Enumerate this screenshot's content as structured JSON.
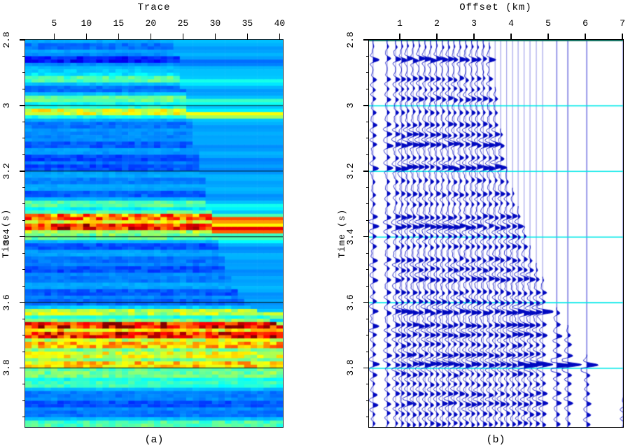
{
  "figure": {
    "panel_a": {
      "title": "Trace",
      "ylabel": "Time (s)",
      "caption": "(a)",
      "x_tick_labels": [
        "5",
        "10",
        "15",
        "20",
        "25",
        "30",
        "35",
        "40"
      ],
      "y_tick_labels": [
        "2.8",
        "3",
        "3.2",
        "3.4",
        "3.6",
        "3.8"
      ]
    },
    "panel_b": {
      "title": "Offset (km)",
      "ylabel": "Time (s)",
      "caption": "(b)",
      "x_tick_labels": [
        "1",
        "2",
        "3",
        "4",
        "5",
        "6",
        "7"
      ],
      "y_tick_labels": [
        "2.8",
        "3",
        "3.2",
        "3.4",
        "3.6",
        "3.8"
      ]
    },
    "colors": {
      "background": "#ffffff",
      "mute_fill_cyan": "#00c2f8",
      "wiggle_blue": "#0008c0",
      "baseline_blue": "#9a9ae8",
      "grid_cyan": "#00e8e8",
      "grid_black": "#102020",
      "top_border_teal": "#0e6e5e",
      "axis_black": "#000000"
    }
  },
  "chart_data": {
    "type": "heatmap",
    "subtype": "seismic-cmp-gather-two-views",
    "panels": [
      {
        "id": "a",
        "type": "heatmap",
        "xlabel": "Trace",
        "ylabel": "Time (s)",
        "x_ticks": [
          5,
          10,
          15,
          20,
          25,
          30,
          35,
          40
        ],
        "x_range": [
          1,
          40
        ],
        "time_ticks": [
          2.8,
          3.0,
          3.2,
          3.4,
          3.6,
          3.8
        ],
        "time_range": [
          2.8,
          3.98
        ],
        "colormap": "jet",
        "grid_times": [
          3.0,
          3.2,
          3.4,
          3.6,
          3.8
        ],
        "mute_boundary_trace_vs_time": [
          [
            2.8,
            23.5
          ],
          [
            3.0,
            25.5
          ],
          [
            3.2,
            27.8
          ],
          [
            3.4,
            30.0
          ],
          [
            3.55,
            32.5
          ],
          [
            3.62,
            36.0
          ],
          [
            3.68,
            41.0
          ]
        ]
      },
      {
        "id": "b",
        "type": "line",
        "subtype": "wiggle-traces",
        "xlabel": "Offset (km)",
        "ylabel": "Time (s)",
        "x_ticks": [
          1,
          2,
          3,
          4,
          5,
          6,
          7
        ],
        "x_range": [
          0.17,
          7.02
        ],
        "time_ticks": [
          2.8,
          3.0,
          3.2,
          3.4,
          3.6,
          3.8
        ],
        "time_range": [
          2.8,
          3.98
        ],
        "grid_times": [
          3.0,
          3.2,
          3.4,
          3.6,
          3.8
        ],
        "trace_offsets_km": [
          0.28,
          0.66,
          0.89,
          1.05,
          1.2,
          1.36,
          1.52,
          1.68,
          1.83,
          1.99,
          2.15,
          2.31,
          2.46,
          2.62,
          2.78,
          2.94,
          3.09,
          3.25,
          3.41,
          3.57,
          3.72,
          3.88,
          4.04,
          4.19,
          4.35,
          4.51,
          4.68,
          4.85,
          5.23,
          5.53,
          6.04,
          7.02
        ],
        "mute_time_vs_offset": [
          [
            3.4,
            2.8
          ],
          [
            3.85,
            3.18
          ],
          [
            4.6,
            3.46
          ],
          [
            5.25,
            3.62
          ],
          [
            6.1,
            3.77
          ],
          [
            7.1,
            3.9
          ]
        ]
      }
    ],
    "events": [
      {
        "t": 2.82,
        "a": -0.35,
        "w": 0.5
      },
      {
        "t": 2.86,
        "a": -0.75,
        "w": 0.85
      },
      {
        "t": 2.92,
        "a": 0.25,
        "w": 0.6
      },
      {
        "t": 2.95,
        "a": -0.35,
        "w": 0.4
      },
      {
        "t": 2.98,
        "a": 0.3,
        "w": 0.65
      },
      {
        "t": 3.02,
        "a": 0.5,
        "w": 0.5
      },
      {
        "t": 3.06,
        "a": -0.35,
        "w": 0.55
      },
      {
        "t": 3.09,
        "a": -0.25,
        "w": 0.7
      },
      {
        "t": 3.12,
        "a": -0.45,
        "w": 0.9
      },
      {
        "t": 3.16,
        "a": -0.55,
        "w": 0.5
      },
      {
        "t": 3.19,
        "a": -0.5,
        "w": 1.0
      },
      {
        "t": 3.23,
        "a": -0.3,
        "w": 0.45
      },
      {
        "t": 3.27,
        "a": -0.45,
        "w": 0.6
      },
      {
        "t": 3.3,
        "a": 0.25,
        "w": 0.4
      },
      {
        "t": 3.34,
        "a": 0.8,
        "w": 0.7
      },
      {
        "t": 3.37,
        "a": 0.95,
        "w": 0.9,
        "boost": 0.8
      },
      {
        "t": 3.4,
        "a": 0.3,
        "w": 0.5
      },
      {
        "t": 3.43,
        "a": -0.5,
        "w": 0.55
      },
      {
        "t": 3.47,
        "a": -0.35,
        "w": 0.65
      },
      {
        "t": 3.5,
        "a": -0.5,
        "w": 0.6
      },
      {
        "t": 3.53,
        "a": -0.3,
        "w": 0.7
      },
      {
        "t": 3.57,
        "a": -0.45,
        "w": 0.55
      },
      {
        "t": 3.6,
        "a": -0.4,
        "w": 0.6
      },
      {
        "t": 3.63,
        "a": 0.45,
        "w": 1.0,
        "boost": 1.6
      },
      {
        "t": 3.67,
        "a": 1.0,
        "w": 0.8
      },
      {
        "t": 3.7,
        "a": 0.95,
        "w": 0.75
      },
      {
        "t": 3.73,
        "a": 0.65,
        "w": 0.6
      },
      {
        "t": 3.76,
        "a": 0.5,
        "w": 0.7
      },
      {
        "t": 3.79,
        "a": 0.6,
        "w": 1.0,
        "boost": 2.6
      },
      {
        "t": 3.82,
        "a": 0.3,
        "w": 0.6
      },
      {
        "t": 3.85,
        "a": 0.2,
        "w": 0.5
      },
      {
        "t": 3.88,
        "a": -0.3,
        "w": 0.65
      },
      {
        "t": 3.91,
        "a": -0.5,
        "w": 0.7
      },
      {
        "t": 3.94,
        "a": -0.35,
        "w": 0.55
      },
      {
        "t": 3.97,
        "a": 0.25,
        "w": 0.5
      }
    ]
  }
}
